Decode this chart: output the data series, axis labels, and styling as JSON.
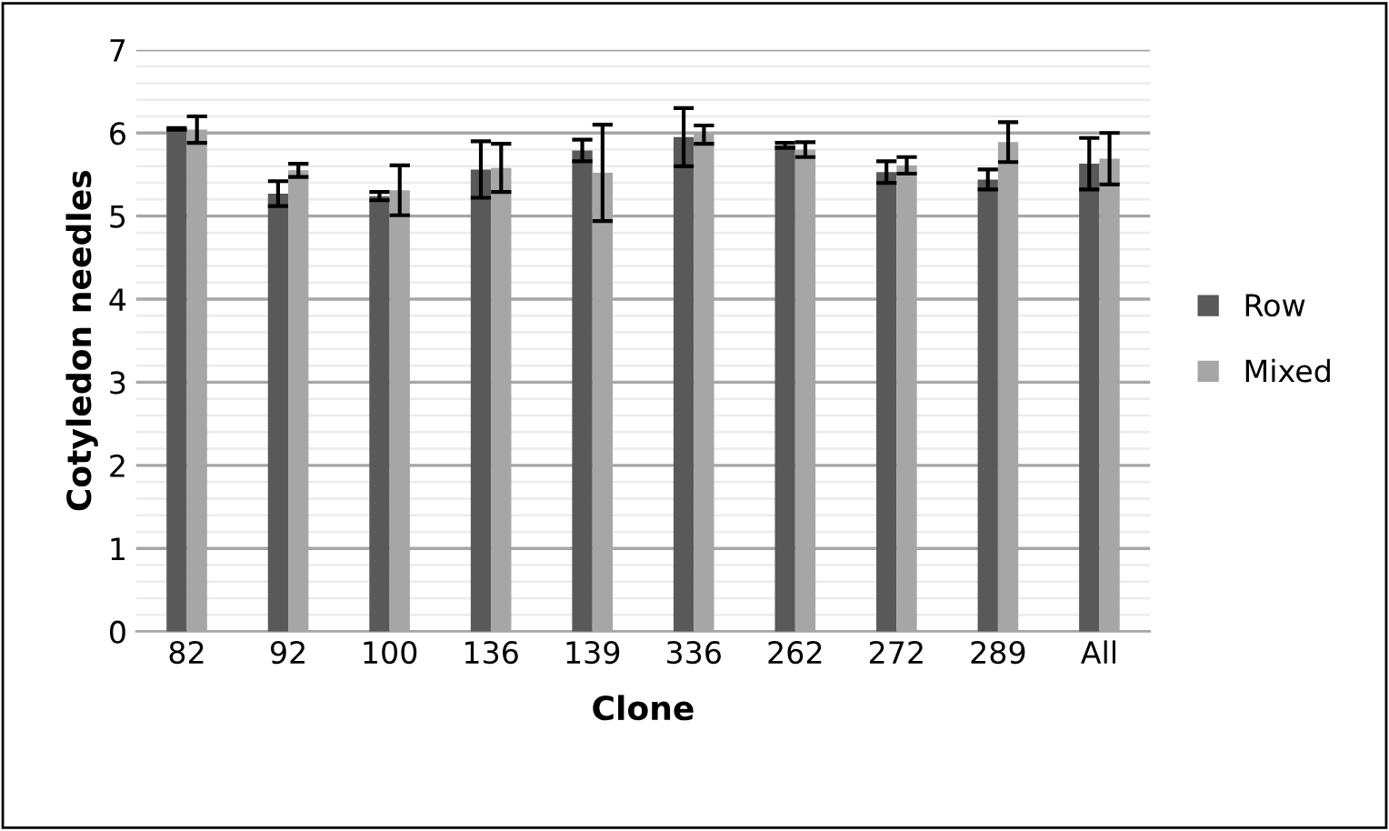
{
  "chart_data": {
    "type": "bar",
    "xlabel": "Clone",
    "ylabel": "Cotyledon needles",
    "categories": [
      "82",
      "92",
      "100",
      "136",
      "139",
      "336",
      "262",
      "272",
      "289",
      "All"
    ],
    "series": [
      {
        "name": "Row",
        "color": "#595959",
        "values": [
          6.05,
          5.27,
          5.24,
          5.56,
          5.79,
          5.95,
          5.85,
          5.53,
          5.44,
          5.63
        ],
        "errors": [
          0.01,
          0.15,
          0.05,
          0.34,
          0.13,
          0.35,
          0.03,
          0.13,
          0.12,
          0.31
        ]
      },
      {
        "name": "Mixed",
        "color": "#a6a6a6",
        "values": [
          6.04,
          5.55,
          5.31,
          5.58,
          5.52,
          5.98,
          5.8,
          5.61,
          5.89,
          5.69
        ],
        "errors": [
          0.16,
          0.08,
          0.3,
          0.29,
          0.58,
          0.11,
          0.09,
          0.1,
          0.24,
          0.31
        ]
      }
    ],
    "ylim": [
      0,
      7
    ],
    "yticks": [
      0,
      {
        "value": 0.2,
        "label": null
      },
      {
        "value": 0.4,
        "label": null
      },
      {
        "value": 0.6,
        "label": null
      },
      {
        "value": 0.8,
        "label": null
      },
      1,
      {
        "value": 1.2,
        "label": null
      },
      {
        "value": 1.4,
        "label": null
      },
      {
        "value": 1.6,
        "label": null
      },
      {
        "value": 1.8,
        "label": null
      },
      2,
      {
        "value": 2.2,
        "label": null
      },
      {
        "value": 2.4,
        "label": null
      },
      {
        "value": 2.6,
        "label": null
      },
      {
        "value": 2.8,
        "label": null
      },
      3,
      {
        "value": 3.2,
        "label": null
      },
      {
        "value": 3.4,
        "label": null
      },
      {
        "value": 3.6,
        "label": null
      },
      {
        "value": 3.8,
        "label": null
      },
      4,
      {
        "value": 4.2,
        "label": null
      },
      {
        "value": 4.4,
        "label": null
      },
      {
        "value": 4.6,
        "label": null
      },
      {
        "value": 4.8,
        "label": null
      },
      5,
      {
        "value": 5.2,
        "label": null
      },
      {
        "value": 5.4,
        "label": null
      },
      {
        "value": 5.6,
        "label": null
      },
      {
        "value": 5.8,
        "label": null
      },
      6,
      {
        "value": 6.2,
        "label": null
      },
      {
        "value": 6.4,
        "label": null
      },
      {
        "value": 6.6,
        "label": null
      },
      {
        "value": 6.8,
        "label": null
      },
      7
    ],
    "grid": "y",
    "legend": "right"
  }
}
